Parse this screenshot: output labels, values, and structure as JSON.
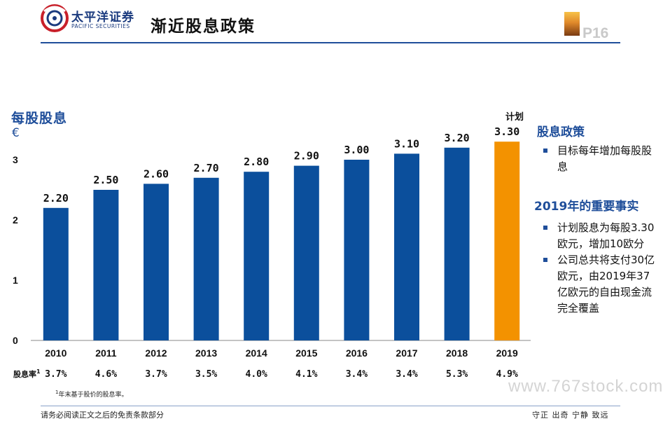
{
  "header": {
    "logo_cn": "太平洋证券",
    "logo_en": "PACIFIC SECURITIES",
    "title": "渐近股息政策",
    "page": "P16",
    "brand_color": "#1f4e9a"
  },
  "chart_data": {
    "type": "bar",
    "title": "",
    "ylabel": "每股股息",
    "yunit": "€",
    "ylim": [
      0,
      3.3
    ],
    "yticks": [
      0,
      1,
      2,
      3
    ],
    "categories": [
      "2010",
      "2011",
      "2012",
      "2013",
      "2014",
      "2015",
      "2016",
      "2017",
      "2018",
      "2019"
    ],
    "values": [
      2.2,
      2.5,
      2.6,
      2.7,
      2.8,
      2.9,
      3.0,
      3.1,
      3.2,
      3.3
    ],
    "value_labels": [
      "2.20",
      "2.50",
      "2.60",
      "2.70",
      "2.80",
      "2.90",
      "3.00",
      "3.10",
      "3.20",
      "3.30"
    ],
    "bar_colors": [
      "#0b4f9c",
      "#0b4f9c",
      "#0b4f9c",
      "#0b4f9c",
      "#0b4f9c",
      "#0b4f9c",
      "#0b4f9c",
      "#0b4f9c",
      "#0b4f9c",
      "#f39200"
    ],
    "planned_label": "计划",
    "grid": false,
    "yield_row_label": "股息率",
    "yield_row_sup": "1",
    "yields": [
      "3.7%",
      "4.6%",
      "3.7%",
      "3.5%",
      "4.0%",
      "4.1%",
      "3.4%",
      "3.4%",
      "5.3%",
      "4.9%"
    ]
  },
  "footnote": {
    "sup": "1",
    "text": "年末基于股价的股息率。"
  },
  "sidebar": {
    "policy_title": "股息政策",
    "policy_items": [
      "目标每年增加每股股息"
    ],
    "facts_title": "2019年的重要事实",
    "facts_items": [
      "计划股息为每股3.30欧元，增加10欧分",
      "公司总共将支付30亿欧元，由2019年37亿欧元的自由现金流完全覆盖"
    ]
  },
  "footer": {
    "disclaimer": "请务必阅读正文之后的免责条款部分",
    "motto": "守正 出奇 宁静 致远"
  },
  "watermark": "www.767stock.com"
}
